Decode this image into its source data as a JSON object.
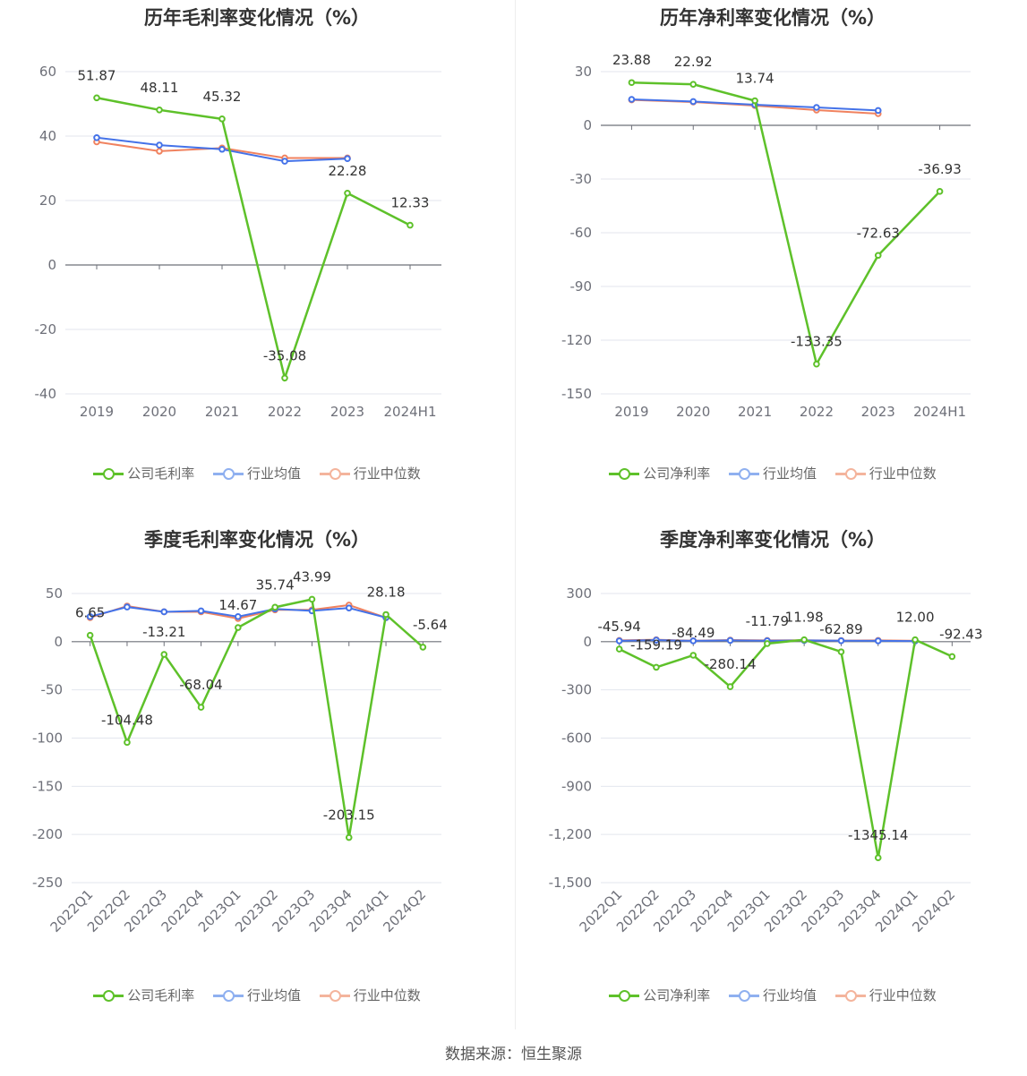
{
  "source": "数据来源：恒生聚源",
  "colors": {
    "company": "#5ec12a",
    "industry_avg": "#4472e8",
    "industry_median": "#f0825f",
    "legend_avg": "#8fb0f0",
    "legend_median": "#f4b49c"
  },
  "chart_data": [
    {
      "slot": "tl",
      "type": "line",
      "title": "历年毛利率变化情况（%）",
      "categories": [
        "2019",
        "2020",
        "2021",
        "2022",
        "2023",
        "2024H1"
      ],
      "ylim": [
        -40,
        60
      ],
      "yticks": [
        60,
        40,
        20,
        0,
        -20,
        -40
      ],
      "rotate_x": false,
      "series": [
        {
          "name": "公司毛利率",
          "role": "company",
          "values": [
            51.87,
            48.11,
            45.32,
            -35.08,
            22.28,
            12.33
          ],
          "labels": [
            "51.87",
            "48.11",
            "45.32",
            "-35.08",
            "22.28",
            "12.33"
          ]
        },
        {
          "name": "行业均值",
          "role": "avg",
          "values": [
            39.5,
            37.2,
            35.9,
            32.2,
            33.0,
            null
          ]
        },
        {
          "name": "行业中位数",
          "role": "median",
          "values": [
            38.2,
            35.3,
            36.3,
            33.2,
            33.2,
            null
          ]
        }
      ],
      "legend": [
        "公司毛利率",
        "行业均值",
        "行业中位数"
      ]
    },
    {
      "slot": "tr",
      "type": "line",
      "title": "历年净利率变化情况（%）",
      "categories": [
        "2019",
        "2020",
        "2021",
        "2022",
        "2023",
        "2024H1"
      ],
      "ylim": [
        -150,
        30
      ],
      "yticks": [
        30,
        0,
        -30,
        -60,
        -90,
        -120,
        -150
      ],
      "rotate_x": false,
      "series": [
        {
          "name": "公司净利率",
          "role": "company",
          "values": [
            23.88,
            22.92,
            13.74,
            -133.35,
            -72.63,
            -36.93
          ],
          "labels": [
            "23.88",
            "22.92",
            "13.74",
            "-133.35",
            "-72.63",
            "-36.93"
          ]
        },
        {
          "name": "行业均值",
          "role": "avg",
          "values": [
            14.5,
            13.3,
            11.5,
            10.0,
            8.3,
            null
          ]
        },
        {
          "name": "行业中位数",
          "role": "median",
          "values": [
            14.2,
            13.0,
            11.0,
            8.5,
            6.5,
            null
          ]
        }
      ],
      "legend": [
        "公司净利率",
        "行业均值",
        "行业中位数"
      ]
    },
    {
      "slot": "bl",
      "type": "line",
      "title": "季度毛利率变化情况（%）",
      "categories": [
        "2022Q1",
        "2022Q2",
        "2022Q3",
        "2022Q4",
        "2023Q1",
        "2023Q2",
        "2023Q3",
        "2023Q4",
        "2024Q1",
        "2024Q2"
      ],
      "ylim": [
        -250,
        50
      ],
      "yticks": [
        50,
        0,
        -50,
        -100,
        -150,
        -200,
        -250
      ],
      "rotate_x": true,
      "series": [
        {
          "name": "公司毛利率",
          "role": "company",
          "values": [
            6.65,
            -104.48,
            -13.21,
            -68.04,
            14.67,
            35.74,
            43.99,
            -203.15,
            28.18,
            -5.64
          ],
          "labels": [
            "6.65",
            "-104.48",
            "-13.21",
            "-68.04",
            "14.67",
            "35.74",
            "43.99",
            "-203.15",
            "28.18",
            "-5.64"
          ]
        },
        {
          "name": "行业均值",
          "role": "avg",
          "values": [
            26,
            36,
            31,
            32,
            26,
            34,
            32,
            35,
            25,
            null
          ]
        },
        {
          "name": "行业中位数",
          "role": "median",
          "values": [
            25,
            37,
            31,
            31,
            24,
            33,
            33,
            38,
            25,
            null
          ]
        }
      ],
      "legend": [
        "公司毛利率",
        "行业均值",
        "行业中位数"
      ]
    },
    {
      "slot": "br",
      "type": "line",
      "title": "季度净利率变化情况（%）",
      "categories": [
        "2022Q1",
        "2022Q2",
        "2022Q3",
        "2022Q4",
        "2023Q1",
        "2023Q2",
        "2023Q3",
        "2023Q4",
        "2024Q1",
        "2024Q2"
      ],
      "ylim": [
        -1500,
        300
      ],
      "yticks": [
        300,
        0,
        -300,
        -600,
        -900,
        -1200,
        -1500
      ],
      "ytick_labels": [
        "300",
        "0",
        "-300",
        "-600",
        "-900",
        "-1,200",
        "-1,500"
      ],
      "rotate_x": true,
      "series": [
        {
          "name": "公司净利率",
          "role": "company",
          "values": [
            -45.94,
            -159.19,
            -84.49,
            -280.14,
            -11.79,
            11.98,
            -62.89,
            -1345.14,
            12.0,
            -92.43
          ],
          "labels": [
            "-45.94",
            "-159.19",
            "-84.49",
            "-280.14",
            "-11.79",
            "11.98",
            "-62.89",
            "-1345.14",
            "12.00",
            "-92.43"
          ]
        },
        {
          "name": "行业均值",
          "role": "avg",
          "values": [
            5,
            10,
            5,
            8,
            6,
            8,
            6,
            5,
            4,
            null
          ]
        },
        {
          "name": "行业中位数",
          "role": "median",
          "values": [
            8,
            12,
            6,
            10,
            8,
            9,
            7,
            8,
            6,
            null
          ]
        }
      ],
      "legend": [
        "公司净利率",
        "行业均值",
        "行业中位数"
      ]
    }
  ]
}
